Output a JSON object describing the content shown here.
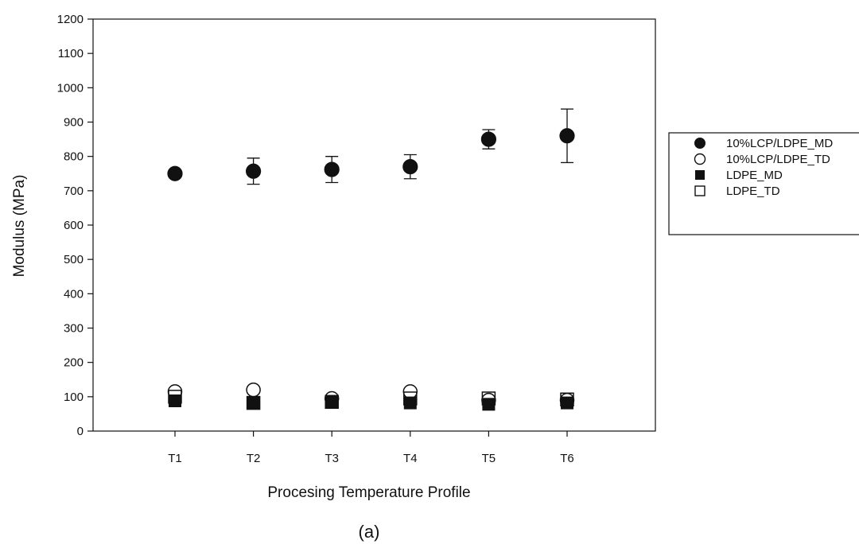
{
  "chart_data": {
    "type": "scatter",
    "xlabel": "Procesing Temperature Profile",
    "ylabel": "Modulus (MPa)",
    "panel_label": "(a)",
    "categories": [
      "T1",
      "T2",
      "T3",
      "T4",
      "T5",
      "T6"
    ],
    "ylim": [
      0,
      1200
    ],
    "yticks": [
      0,
      100,
      200,
      300,
      400,
      500,
      600,
      700,
      800,
      900,
      1000,
      1100,
      1200
    ],
    "grid": false,
    "legend_position": "right",
    "series": [
      {
        "name": "10%LCP/LDPE_MD",
        "marker": "filled-circle",
        "values": [
          750,
          757,
          762,
          770,
          850,
          860
        ],
        "error": [
          0,
          38,
          38,
          35,
          28,
          78
        ]
      },
      {
        "name": "10%LCP/LDPE_TD",
        "marker": "open-circle",
        "values": [
          115,
          120,
          95,
          115,
          90,
          90
        ],
        "error": [
          0,
          0,
          0,
          0,
          0,
          0
        ]
      },
      {
        "name": "LDPE_MD",
        "marker": "filled-square",
        "values": [
          88,
          82,
          85,
          82,
          78,
          82
        ],
        "error": [
          0,
          0,
          0,
          0,
          0,
          0
        ]
      },
      {
        "name": "LDPE_TD",
        "marker": "open-square",
        "values": [
          100,
          82,
          85,
          95,
          95,
          92
        ],
        "error": [
          0,
          0,
          0,
          0,
          0,
          0
        ]
      }
    ]
  }
}
